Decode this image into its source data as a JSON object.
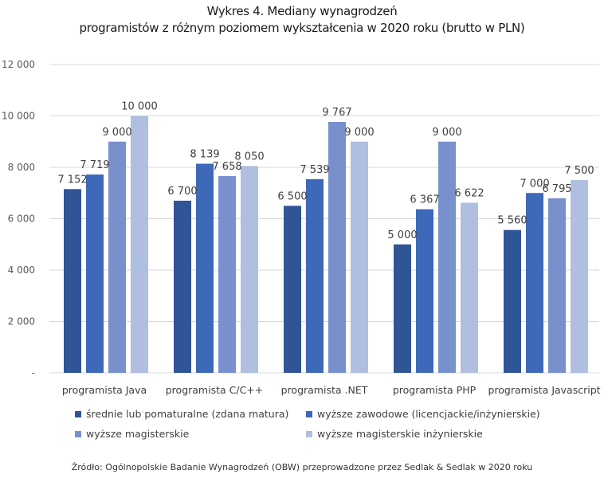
{
  "chart_data": {
    "type": "bar",
    "title_line1": "Wykres 4. Mediany wynagrodzeń",
    "title_line2": "programistów z różnym poziomem wykształcenia w 2020 roku (brutto w PLN)",
    "xlabel": "",
    "ylabel": "",
    "ylim": [
      0,
      12000
    ],
    "yticks": [
      0,
      2000,
      4000,
      6000,
      8000,
      10000,
      12000
    ],
    "ytick_labels": [
      "-",
      "2 000",
      "4 000",
      "6 000",
      "8 000",
      "10 000",
      "12 000"
    ],
    "grid": true,
    "legend_position": "bottom",
    "categories": [
      "programista Java",
      "programista C/C++",
      "programista .NET",
      "programista PHP",
      "programista Javascript"
    ],
    "series": [
      {
        "name": "średnie lub pomaturalne (zdana matura)",
        "color": "#2f5597",
        "values": [
          7152,
          6700,
          6500,
          5000,
          5560
        ],
        "labels": [
          "7 152",
          "6 700",
          "6 500",
          "5 000",
          "5 560"
        ]
      },
      {
        "name": "wyższe zawodowe (licencjackie/inżynierskie)",
        "color": "#3e68b8",
        "values": [
          7719,
          8139,
          7539,
          6367,
          7000
        ],
        "labels": [
          "7 719",
          "8 139",
          "7 539",
          "6 367",
          "7 000"
        ]
      },
      {
        "name": "wyższe magisterskie",
        "color": "#7891cd",
        "values": [
          9000,
          7658,
          9767,
          9000,
          6795
        ],
        "labels": [
          "9 000",
          "7 658",
          "9 767",
          "9 000",
          "6 795"
        ]
      },
      {
        "name": "wyższe magisterskie inżynierskie",
        "color": "#b0bedf",
        "values": [
          10000,
          8050,
          9000,
          6622,
          7500
        ],
        "labels": [
          "10 000",
          "8 050",
          "9 000",
          "6 622",
          "7 500"
        ]
      }
    ],
    "source": "Źródło: Ogólnopolskie Badanie Wynagrodzeń (OBW) przeprowadzone przez Sedlak & Sedlak w 2020 roku"
  }
}
